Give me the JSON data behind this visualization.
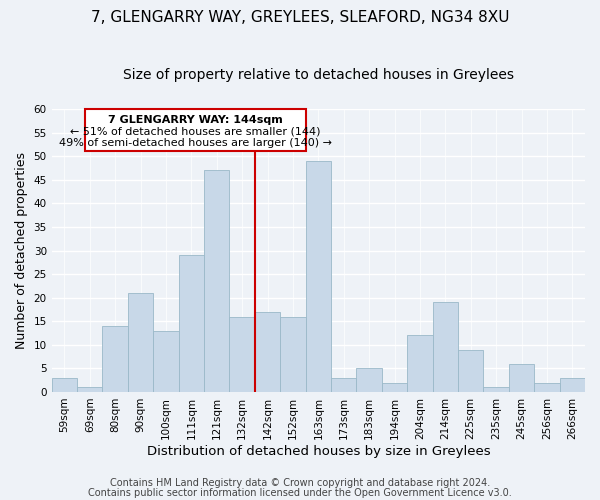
{
  "title": "7, GLENGARRY WAY, GREYLEES, SLEAFORD, NG34 8XU",
  "subtitle": "Size of property relative to detached houses in Greylees",
  "xlabel": "Distribution of detached houses by size in Greylees",
  "ylabel": "Number of detached properties",
  "bins": [
    "59sqm",
    "69sqm",
    "80sqm",
    "90sqm",
    "100sqm",
    "111sqm",
    "121sqm",
    "132sqm",
    "142sqm",
    "152sqm",
    "163sqm",
    "173sqm",
    "183sqm",
    "194sqm",
    "204sqm",
    "214sqm",
    "225sqm",
    "235sqm",
    "245sqm",
    "256sqm",
    "266sqm"
  ],
  "values": [
    3,
    1,
    14,
    21,
    13,
    29,
    47,
    16,
    17,
    16,
    49,
    3,
    5,
    2,
    12,
    19,
    9,
    1,
    6,
    2,
    3
  ],
  "bar_color": "#c8d8e8",
  "bar_edge_color": "#9ab8c8",
  "highlight_line_color": "#cc0000",
  "highlight_line_index": 8,
  "box_text_line1": "7 GLENGARRY WAY: 144sqm",
  "box_text_line2": "← 51% of detached houses are smaller (144)",
  "box_text_line3": "49% of semi-detached houses are larger (140) →",
  "box_color": "#cc0000",
  "box_fill": "#ffffff",
  "ylim": [
    0,
    60
  ],
  "yticks": [
    0,
    5,
    10,
    15,
    20,
    25,
    30,
    35,
    40,
    45,
    50,
    55,
    60
  ],
  "footer1": "Contains HM Land Registry data © Crown copyright and database right 2024.",
  "footer2": "Contains public sector information licensed under the Open Government Licence v3.0.",
  "title_fontsize": 11,
  "subtitle_fontsize": 10,
  "xlabel_fontsize": 9.5,
  "ylabel_fontsize": 9,
  "tick_fontsize": 7.5,
  "footer_fontsize": 7,
  "background_color": "#eef2f7"
}
